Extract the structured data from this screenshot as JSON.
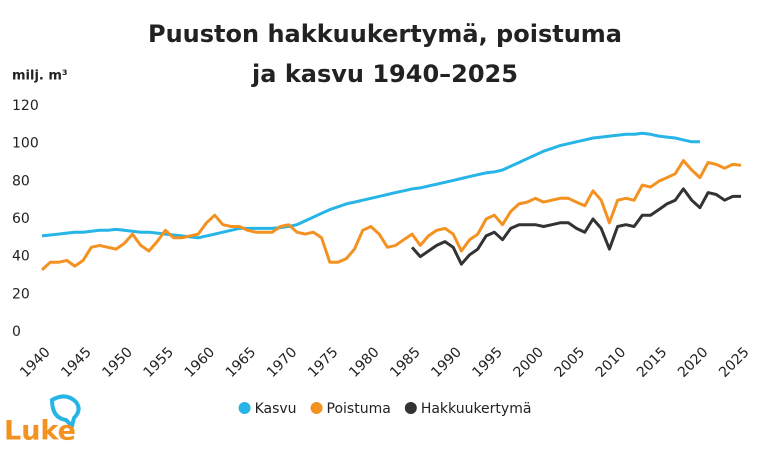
{
  "chart_data": {
    "type": "line",
    "title": [
      "Puuston hakkuukertymä, poistuma",
      "ja kasvu 1940–2025"
    ],
    "y_label": "milj. m³",
    "logo": "Luke",
    "x": [
      1940,
      1941,
      1942,
      1943,
      1944,
      1945,
      1946,
      1947,
      1948,
      1949,
      1950,
      1951,
      1952,
      1953,
      1954,
      1955,
      1956,
      1957,
      1958,
      1959,
      1960,
      1961,
      1962,
      1963,
      1964,
      1965,
      1966,
      1967,
      1968,
      1969,
      1970,
      1971,
      1972,
      1973,
      1974,
      1975,
      1976,
      1977,
      1978,
      1979,
      1980,
      1981,
      1982,
      1983,
      1984,
      1985,
      1986,
      1987,
      1988,
      1989,
      1990,
      1991,
      1992,
      1993,
      1994,
      1995,
      1996,
      1997,
      1998,
      1999,
      2000,
      2001,
      2002,
      2003,
      2004,
      2005,
      2006,
      2007,
      2008,
      2009,
      2010,
      2011,
      2012,
      2013,
      2014,
      2015,
      2016,
      2017,
      2018,
      2019,
      2020,
      2021,
      2022,
      2023,
      2024,
      2025
    ],
    "xlim": [
      1940,
      2025
    ],
    "xticks": [
      1940,
      1945,
      1950,
      1955,
      1960,
      1965,
      1970,
      1975,
      1980,
      1985,
      1990,
      1995,
      2000,
      2005,
      2010,
      2015,
      2020,
      2025
    ],
    "ylim": [
      0,
      120
    ],
    "yticks": [
      0,
      20,
      40,
      60,
      80,
      100,
      120
    ],
    "grid": false,
    "legend": "bottom",
    "series": [
      {
        "name": "Kasvu",
        "color": "#27b4e6",
        "values": [
          51,
          51.5,
          52,
          52.5,
          53,
          53,
          53.5,
          54,
          54,
          54.5,
          54,
          53.5,
          53,
          53,
          52.5,
          52,
          51.5,
          51,
          50.5,
          50,
          51,
          52,
          53,
          54,
          55,
          55,
          55,
          55,
          55,
          55.5,
          56,
          57,
          59,
          61,
          63,
          65,
          66.5,
          68,
          69,
          70,
          71,
          72,
          73,
          74,
          75,
          76,
          76.5,
          77.5,
          78.5,
          79.5,
          80.5,
          81.5,
          82.5,
          83.5,
          84.5,
          85,
          86,
          88,
          90,
          92,
          94,
          96,
          97.5,
          99,
          100,
          101,
          102,
          103,
          103.5,
          104,
          104.5,
          105,
          105,
          105.5,
          105,
          104,
          103.5,
          103,
          102,
          101,
          101,
          null,
          null,
          null,
          null,
          null
        ]
      },
      {
        "name": "Poistuma",
        "color": "#f39220",
        "values": [
          33,
          37,
          37,
          38,
          35,
          38,
          45,
          46,
          45,
          44,
          47,
          52,
          46,
          43,
          48,
          54,
          50,
          50,
          51,
          52,
          58,
          62,
          57,
          56,
          56,
          54,
          53,
          53,
          53,
          56,
          57,
          53,
          52,
          53,
          50,
          37,
          37,
          39,
          44,
          54,
          56,
          52,
          45,
          46,
          49,
          52,
          46,
          51,
          54,
          55,
          52,
          43,
          49,
          52,
          60,
          62,
          57,
          64,
          68,
          69,
          71,
          69,
          70,
          71,
          71,
          69,
          67,
          75,
          70,
          58,
          70,
          71,
          70,
          78,
          77,
          80,
          82,
          84,
          91,
          86,
          82,
          90,
          89,
          87,
          89,
          88.5
        ]
      },
      {
        "name": "Hakkuukertymä",
        "color": "#333333",
        "values": [
          null,
          null,
          null,
          null,
          null,
          null,
          null,
          null,
          null,
          null,
          null,
          null,
          null,
          null,
          null,
          null,
          null,
          null,
          null,
          null,
          null,
          null,
          null,
          null,
          null,
          null,
          null,
          null,
          null,
          null,
          null,
          null,
          null,
          null,
          null,
          null,
          null,
          null,
          null,
          null,
          null,
          null,
          null,
          null,
          null,
          45,
          40,
          43,
          46,
          48,
          45,
          36,
          41,
          44,
          51,
          53,
          49,
          55,
          57,
          57,
          57,
          56,
          57,
          58,
          58,
          55,
          53,
          60,
          55,
          44,
          56,
          57,
          56,
          62,
          62,
          65,
          68,
          70,
          76,
          70,
          66,
          74,
          73,
          70,
          72,
          72
        ]
      }
    ]
  }
}
